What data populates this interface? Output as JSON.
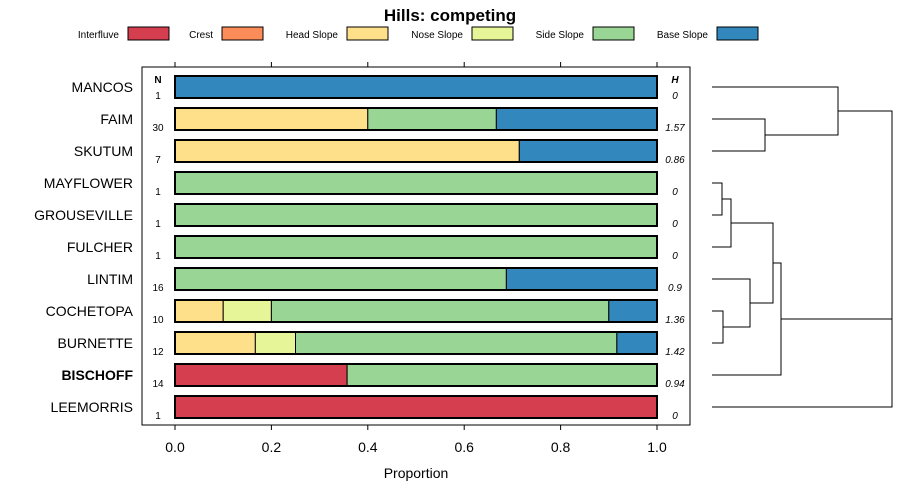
{
  "chart_data": {
    "type": "bar",
    "orientation": "horizontal",
    "stacked": true,
    "title": "Hills: competing",
    "xlabel": "Proportion",
    "xlim": [
      0,
      1
    ],
    "xticks": [
      "0.0",
      "0.2",
      "0.4",
      "0.6",
      "0.8",
      "1.0"
    ],
    "xtick_values": [
      0,
      0.2,
      0.4,
      0.6,
      0.8,
      1.0
    ],
    "n_header": "N",
    "h_header": "H",
    "legend": [
      {
        "name": "Interfluve",
        "color": "#D53E4F"
      },
      {
        "name": "Crest",
        "color": "#FC8D59"
      },
      {
        "name": "Head Slope",
        "color": "#FEE08B"
      },
      {
        "name": "Nose Slope",
        "color": "#E6F598"
      },
      {
        "name": "Side Slope",
        "color": "#99D594"
      },
      {
        "name": "Base Slope",
        "color": "#3288BD"
      }
    ],
    "rows": [
      {
        "label": "MANCOS",
        "bold": false,
        "n": "1",
        "h": "0",
        "values": [
          0,
          0,
          0,
          0,
          0,
          1.0
        ]
      },
      {
        "label": "FAIM",
        "bold": false,
        "n": "30",
        "h": "1.57",
        "values": [
          0,
          0,
          0.4,
          0,
          0.2667,
          0.3333
        ]
      },
      {
        "label": "SKUTUM",
        "bold": false,
        "n": "7",
        "h": "0.86",
        "values": [
          0,
          0,
          0.7143,
          0,
          0,
          0.2857
        ]
      },
      {
        "label": "MAYFLOWER",
        "bold": false,
        "n": "1",
        "h": "0",
        "values": [
          0,
          0,
          0,
          0,
          1.0,
          0
        ]
      },
      {
        "label": "GROUSEVILLE",
        "bold": false,
        "n": "1",
        "h": "0",
        "values": [
          0,
          0,
          0,
          0,
          1.0,
          0
        ]
      },
      {
        "label": "FULCHER",
        "bold": false,
        "n": "1",
        "h": "0",
        "values": [
          0,
          0,
          0,
          0,
          1.0,
          0
        ]
      },
      {
        "label": "LINTIM",
        "bold": false,
        "n": "16",
        "h": "0.9",
        "values": [
          0,
          0,
          0,
          0,
          0.6875,
          0.3125
        ]
      },
      {
        "label": "COCHETOPA",
        "bold": false,
        "n": "10",
        "h": "1.36",
        "values": [
          0,
          0,
          0.1,
          0.1,
          0.7,
          0.1
        ]
      },
      {
        "label": "BURNETTE",
        "bold": false,
        "n": "12",
        "h": "1.42",
        "values": [
          0,
          0,
          0.1667,
          0.0833,
          0.6667,
          0.0833
        ]
      },
      {
        "label": "BISCHOFF",
        "bold": true,
        "n": "14",
        "h": "0.94",
        "values": [
          0.3571,
          0,
          0,
          0,
          0.6429,
          0
        ]
      },
      {
        "label": "LEEMORRIS",
        "bold": false,
        "n": "1",
        "h": "0",
        "values": [
          1.0,
          0,
          0,
          0,
          0,
          0
        ]
      }
    ]
  }
}
